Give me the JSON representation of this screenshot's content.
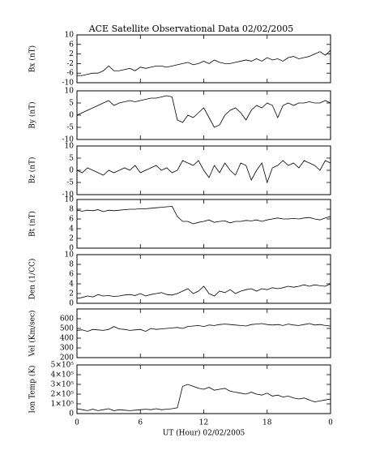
{
  "title": "ACE Satellite Observational Data   02/02/2005",
  "chart_data": [
    {
      "type": "line",
      "ylabel": "Bx (nT)",
      "xlim": [
        0,
        24
      ],
      "ylim": [
        -10,
        10
      ],
      "yticks": [
        -10,
        -6,
        -2,
        2,
        6,
        10
      ],
      "x": [
        0,
        0.5,
        1,
        1.5,
        2,
        2.5,
        3,
        3.5,
        4,
        4.5,
        5,
        5.5,
        6,
        6.5,
        7,
        7.5,
        8,
        8.5,
        9,
        9.5,
        10,
        10.5,
        11,
        11.5,
        12,
        12.5,
        13,
        13.5,
        14,
        14.5,
        15,
        15.5,
        16,
        16.5,
        17,
        17.5,
        18,
        18.5,
        19,
        19.5,
        20,
        20.5,
        21,
        21.5,
        22,
        22.5,
        23,
        23.5,
        24
      ],
      "series": [
        {
          "color": "#000000",
          "values": [
            -7,
            -7,
            -6.5,
            -6,
            -6,
            -5,
            -3,
            -5,
            -5,
            -4.5,
            -4,
            -5,
            -3.5,
            -4,
            -3.5,
            -3,
            -3,
            -3.5,
            -3,
            -2.5,
            -2,
            -1.5,
            -2.5,
            -2,
            -1,
            -2,
            -0.5,
            -1.5,
            -2,
            -2,
            -1.5,
            -1,
            -0.5,
            -1,
            0,
            -1,
            0.5,
            -0.5,
            0,
            -1,
            0.5,
            1,
            0,
            0.5,
            1,
            2,
            3,
            1.5,
            3.5
          ]
        }
      ]
    },
    {
      "type": "line",
      "ylabel": "By (nT)",
      "xlim": [
        0,
        24
      ],
      "ylim": [
        -10,
        10
      ],
      "yticks": [
        -10,
        -5,
        0,
        5,
        10
      ],
      "x": [
        0,
        0.5,
        1,
        1.5,
        2,
        2.5,
        3,
        3.5,
        4,
        4.5,
        5,
        5.5,
        6,
        6.5,
        7,
        7.5,
        8,
        8.5,
        9,
        9.5,
        10,
        10.5,
        11,
        11.5,
        12,
        12.5,
        13,
        13.5,
        14,
        14.5,
        15,
        15.5,
        16,
        16.5,
        17,
        17.5,
        18,
        18.5,
        19,
        19.5,
        20,
        20.5,
        21,
        21.5,
        22,
        22.5,
        23,
        23.5,
        24
      ],
      "series": [
        {
          "color": "#000000",
          "values": [
            0,
            1,
            2,
            3,
            4,
            5,
            6,
            4,
            5,
            5.5,
            6,
            5.5,
            6,
            6.5,
            7,
            7,
            7.5,
            8,
            7.5,
            -2,
            -3,
            0,
            -1,
            1,
            3,
            -1,
            -5,
            -4,
            0,
            2,
            3,
            1,
            -2,
            2,
            4,
            3,
            5,
            4,
            -1,
            4,
            5,
            4,
            5,
            5,
            5.5,
            5,
            5,
            6,
            5
          ]
        }
      ]
    },
    {
      "type": "line",
      "ylabel": "Bz (nT)",
      "xlim": [
        0,
        24
      ],
      "ylim": [
        -10,
        10
      ],
      "yticks": [
        -10,
        -5,
        0,
        5,
        10
      ],
      "x": [
        0,
        0.5,
        1,
        1.5,
        2,
        2.5,
        3,
        3.5,
        4,
        4.5,
        5,
        5.5,
        6,
        6.5,
        7,
        7.5,
        8,
        8.5,
        9,
        9.5,
        10,
        10.5,
        11,
        11.5,
        12,
        12.5,
        13,
        13.5,
        14,
        14.5,
        15,
        15.5,
        16,
        16.5,
        17,
        17.5,
        18,
        18.5,
        19,
        19.5,
        20,
        20.5,
        21,
        21.5,
        22,
        22.5,
        23,
        23.5,
        24
      ],
      "series": [
        {
          "color": "#000000",
          "values": [
            0,
            -1,
            1,
            0,
            -1,
            -2,
            0,
            -1,
            0,
            1,
            0,
            2,
            -1,
            0,
            1,
            2,
            0,
            1,
            -1,
            0,
            4,
            3,
            2,
            4,
            0,
            -3,
            2,
            -1,
            3,
            0,
            -2,
            3,
            2,
            -4,
            0,
            3,
            -5,
            1,
            2,
            4,
            2,
            3,
            1,
            4,
            3,
            2,
            0,
            4,
            3
          ]
        }
      ]
    },
    {
      "type": "line",
      "ylabel": "Bt (nT)",
      "xlim": [
        0,
        24
      ],
      "ylim": [
        0,
        10
      ],
      "yticks": [
        0,
        2,
        4,
        6,
        8,
        10
      ],
      "x": [
        0,
        0.5,
        1,
        1.5,
        2,
        2.5,
        3,
        3.5,
        4,
        4.5,
        5,
        5.5,
        6,
        6.5,
        7,
        7.5,
        8,
        8.5,
        9,
        9.5,
        10,
        10.5,
        11,
        11.5,
        12,
        12.5,
        13,
        13.5,
        14,
        14.5,
        15,
        15.5,
        16,
        16.5,
        17,
        17.5,
        18,
        18.5,
        19,
        19.5,
        20,
        20.5,
        21,
        21.5,
        22,
        22.5,
        23,
        23.5,
        24
      ],
      "series": [
        {
          "color": "#000000",
          "values": [
            7.8,
            7.6,
            7.8,
            7.7,
            7.9,
            7.5,
            7.8,
            7.7,
            7.8,
            7.9,
            8,
            8,
            8.1,
            8.1,
            8.2,
            8.3,
            8.4,
            8.5,
            8.6,
            6.5,
            5.5,
            5.5,
            5,
            5.3,
            5.5,
            5.8,
            5.3,
            5.5,
            5.6,
            5.2,
            5.5,
            5.5,
            5.7,
            5.6,
            5.8,
            5.5,
            5.8,
            6,
            6.2,
            6,
            6,
            6.1,
            6,
            6.2,
            6.3,
            6,
            5.8,
            6.2,
            6.5
          ]
        }
      ]
    },
    {
      "type": "line",
      "ylabel": "Den (1/CC)",
      "xlim": [
        0,
        24
      ],
      "ylim": [
        0,
        10
      ],
      "yticks": [
        0,
        2,
        4,
        6,
        8,
        10
      ],
      "x": [
        0,
        0.5,
        1,
        1.5,
        2,
        2.5,
        3,
        3.5,
        4,
        4.5,
        5,
        5.5,
        6,
        6.5,
        7,
        7.5,
        8,
        8.5,
        9,
        9.5,
        10,
        10.5,
        11,
        11.5,
        12,
        12.5,
        13,
        13.5,
        14,
        14.5,
        15,
        15.5,
        16,
        16.5,
        17,
        17.5,
        18,
        18.5,
        19,
        19.5,
        20,
        20.5,
        21,
        21.5,
        22,
        22.5,
        23,
        23.5,
        24
      ],
      "series": [
        {
          "color": "#000000",
          "values": [
            1,
            1.2,
            1.5,
            1.3,
            1.8,
            1.5,
            1.6,
            1.4,
            1.5,
            1.7,
            1.8,
            1.6,
            2,
            1.5,
            1.8,
            2,
            2.2,
            1.8,
            1.7,
            2,
            2.5,
            3,
            2,
            2.5,
            3.5,
            2,
            1.5,
            2.5,
            2.2,
            2.8,
            2,
            2.5,
            2.8,
            3,
            2.5,
            3,
            2.8,
            3.2,
            3,
            3.2,
            3.5,
            3.3,
            3.5,
            3.8,
            3.5,
            3.8,
            3.6,
            3.5,
            4
          ]
        }
      ]
    },
    {
      "type": "line",
      "ylabel": "Vel (Km/sec)",
      "xlim": [
        0,
        24
      ],
      "ylim": [
        200,
        700
      ],
      "yticks": [
        200,
        300,
        400,
        500,
        600
      ],
      "x": [
        0,
        0.5,
        1,
        1.5,
        2,
        2.5,
        3,
        3.5,
        4,
        4.5,
        5,
        5.5,
        6,
        6.5,
        7,
        7.5,
        8,
        8.5,
        9,
        9.5,
        10,
        10.5,
        11,
        11.5,
        12,
        12.5,
        13,
        13.5,
        14,
        14.5,
        15,
        15.5,
        16,
        16.5,
        17,
        17.5,
        18,
        18.5,
        19,
        19.5,
        20,
        20.5,
        21,
        21.5,
        22,
        22.5,
        23,
        23.5,
        24
      ],
      "series": [
        {
          "color": "#000000",
          "values": [
            480,
            485,
            470,
            490,
            485,
            480,
            490,
            520,
            495,
            490,
            480,
            485,
            490,
            470,
            500,
            490,
            495,
            500,
            505,
            510,
            500,
            520,
            525,
            530,
            520,
            535,
            530,
            540,
            545,
            540,
            535,
            530,
            525,
            540,
            545,
            550,
            540,
            535,
            540,
            530,
            545,
            535,
            530,
            540,
            550,
            535,
            540,
            530,
            525
          ]
        }
      ]
    },
    {
      "type": "line",
      "ylabel": "Ion Temp (K)",
      "xlabel": "UT (Hour)   02/02/2005",
      "xlim": [
        0,
        24
      ],
      "ylim": [
        0,
        500000
      ],
      "yticks": [
        0,
        {
          "value": 100000,
          "label": "1×10⁵"
        },
        {
          "value": 200000,
          "label": "2×10⁵"
        },
        {
          "value": 300000,
          "label": "3×10⁵"
        },
        {
          "value": 400000,
          "label": "4×10⁵"
        },
        {
          "value": 500000,
          "label": "5×10⁵"
        }
      ],
      "xticks": [
        0,
        6,
        12,
        18,
        {
          "value": 24,
          "label": "0"
        }
      ],
      "x": [
        0,
        0.5,
        1,
        1.5,
        2,
        2.5,
        3,
        3.5,
        4,
        4.5,
        5,
        5.5,
        6,
        6.5,
        7,
        7.5,
        8,
        8.5,
        9,
        9.5,
        10,
        10.5,
        11,
        11.5,
        12,
        12.5,
        13,
        13.5,
        14,
        14.5,
        15,
        15.5,
        16,
        16.5,
        17,
        17.5,
        18,
        18.5,
        19,
        19.5,
        20,
        20.5,
        21,
        21.5,
        22,
        22.5,
        23,
        23.5,
        24
      ],
      "series": [
        {
          "color": "#000000",
          "values": [
            50000,
            40000,
            30000,
            45000,
            30000,
            40000,
            50000,
            30000,
            40000,
            35000,
            30000,
            35000,
            40000,
            45000,
            40000,
            50000,
            40000,
            45000,
            50000,
            60000,
            280000,
            300000,
            280000,
            260000,
            250000,
            270000,
            240000,
            250000,
            260000,
            230000,
            220000,
            210000,
            200000,
            220000,
            200000,
            190000,
            210000,
            180000,
            190000,
            170000,
            180000,
            160000,
            150000,
            160000,
            140000,
            120000,
            130000,
            140000,
            150000
          ]
        }
      ]
    }
  ]
}
